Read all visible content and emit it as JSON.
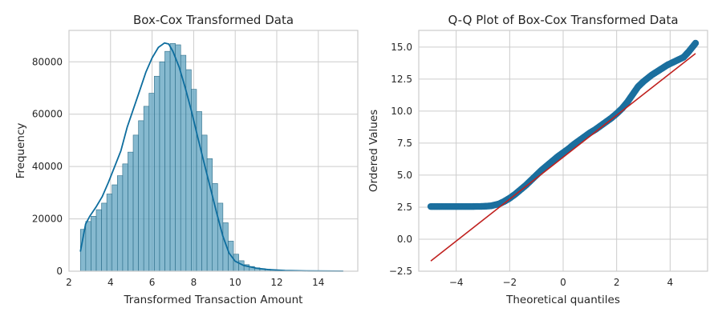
{
  "chart_data": [
    {
      "type": "bar",
      "title": "Box-Cox Transformed Data",
      "xlabel": "Transformed Transaction Amount",
      "ylabel": "Frequency",
      "xlim": [
        2.0,
        15.9
      ],
      "ylim": [
        0,
        92000
      ],
      "xticks": [
        2,
        4,
        6,
        8,
        10,
        12,
        14
      ],
      "yticks": [
        0,
        20000,
        40000,
        60000,
        80000
      ],
      "grid": true,
      "bar_color": "#5ea2bf",
      "bar_edge_color": "#2f6f8a",
      "kde_color": "#0d6d9e",
      "bin_width": 0.254,
      "bins_start": 2.55,
      "values": [
        16000,
        19000,
        21000,
        23500,
        26000,
        29500,
        33000,
        36500,
        41000,
        45500,
        52000,
        57500,
        63000,
        68000,
        74500,
        80000,
        84000,
        87000,
        86500,
        82500,
        77000,
        69500,
        61000,
        52000,
        43000,
        33500,
        26000,
        18500,
        11500,
        6500,
        4000,
        2500,
        1800,
        1300,
        1000,
        750,
        550,
        420,
        330,
        250,
        190,
        150,
        110,
        85,
        60,
        45,
        30,
        20,
        15,
        10,
        8
      ],
      "kde": {
        "x": [
          2.55,
          2.8,
          3.0,
          3.3,
          3.6,
          3.9,
          4.2,
          4.5,
          4.8,
          5.1,
          5.4,
          5.7,
          6.0,
          6.3,
          6.6,
          6.8,
          7.0,
          7.3,
          7.6,
          7.9,
          8.2,
          8.5,
          8.8,
          9.1,
          9.4,
          9.7,
          10.0,
          10.4,
          11.0,
          11.6,
          12.4,
          13.5,
          15.2
        ],
        "y": [
          7500,
          18000,
          21000,
          24500,
          28500,
          34000,
          40000,
          46000,
          55000,
          62000,
          69000,
          76000,
          81500,
          85500,
          87200,
          86800,
          84000,
          78000,
          70000,
          61000,
          51000,
          41500,
          32000,
          22500,
          13500,
          7000,
          3800,
          2200,
          1200,
          600,
          250,
          80,
          20
        ]
      }
    },
    {
      "type": "scatter",
      "title": "Q-Q Plot of Box-Cox Transformed Data",
      "xlabel": "Theoretical quantiles",
      "ylabel": "Ordered Values",
      "xlim": [
        -5.4,
        5.4
      ],
      "ylim": [
        -2.5,
        16.3
      ],
      "xticks": [
        -4,
        -2,
        0,
        2,
        4
      ],
      "yticks": [
        -2.5,
        0.0,
        2.5,
        5.0,
        7.5,
        10.0,
        12.5,
        15.0
      ],
      "grid": true,
      "point_color": "#1b6f9e",
      "line_color": "#c0211f",
      "fit_line": {
        "x": [
          -4.95,
          4.95
        ],
        "y": [
          -1.7,
          14.5
        ]
      },
      "points": {
        "x": [
          -4.95,
          -4.6,
          -4.2,
          -3.8,
          -3.4,
          -3.0,
          -2.7,
          -2.4,
          -2.2,
          -2.0,
          -1.8,
          -1.6,
          -1.4,
          -1.2,
          -1.0,
          -0.8,
          -0.6,
          -0.4,
          -0.2,
          0.0,
          0.2,
          0.4,
          0.6,
          0.8,
          1.0,
          1.2,
          1.4,
          1.6,
          1.8,
          2.0,
          2.2,
          2.4,
          2.6,
          2.8,
          3.0,
          3.3,
          3.6,
          3.9,
          4.2,
          4.5,
          4.7,
          4.95
        ],
        "y": [
          2.55,
          2.55,
          2.55,
          2.55,
          2.55,
          2.56,
          2.6,
          2.75,
          2.95,
          3.2,
          3.5,
          3.85,
          4.2,
          4.6,
          5.0,
          5.4,
          5.75,
          6.1,
          6.45,
          6.75,
          7.05,
          7.4,
          7.7,
          8.0,
          8.3,
          8.55,
          8.85,
          9.15,
          9.45,
          9.8,
          10.2,
          10.7,
          11.3,
          11.9,
          12.3,
          12.8,
          13.2,
          13.6,
          13.9,
          14.2,
          14.65,
          15.3
        ]
      }
    }
  ]
}
